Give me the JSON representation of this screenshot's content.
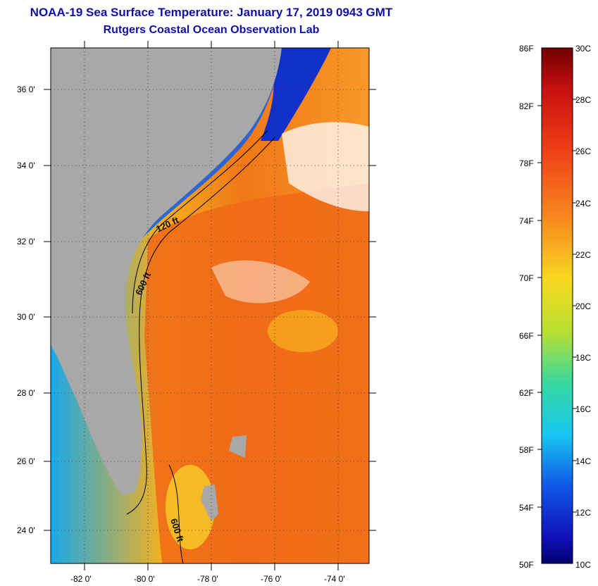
{
  "title": {
    "line1": "NOAA-19 Sea Surface Temperature:  January 17, 2019 0943 GMT",
    "line2": "Rutgers Coastal Ocean Observation Lab"
  },
  "map": {
    "lat_labels": [
      "36 0'",
      "34 0'",
      "32 0'",
      "30 0'",
      "28 0'",
      "26 0'",
      "24 0'"
    ],
    "lon_labels": [
      "-82 0'",
      "-80 0'",
      "-78 0'",
      "-76 0'",
      "-74 0'"
    ],
    "contours": [
      "120 ft",
      "600 ft",
      "600 ft"
    ]
  },
  "colorbar": {
    "fahrenheit": [
      "86F",
      "82F",
      "78F",
      "74F",
      "70F",
      "66F",
      "62F",
      "58F",
      "54F",
      "50F"
    ],
    "celsius": [
      "30C",
      "28C",
      "26C",
      "24C",
      "22C",
      "20C",
      "18C",
      "16C",
      "14C",
      "12C",
      "10C"
    ]
  },
  "colors": {
    "title": "#1010a8",
    "land": "#a8a8a8",
    "cold": "#0a2ad8",
    "warm": "#f06010"
  }
}
